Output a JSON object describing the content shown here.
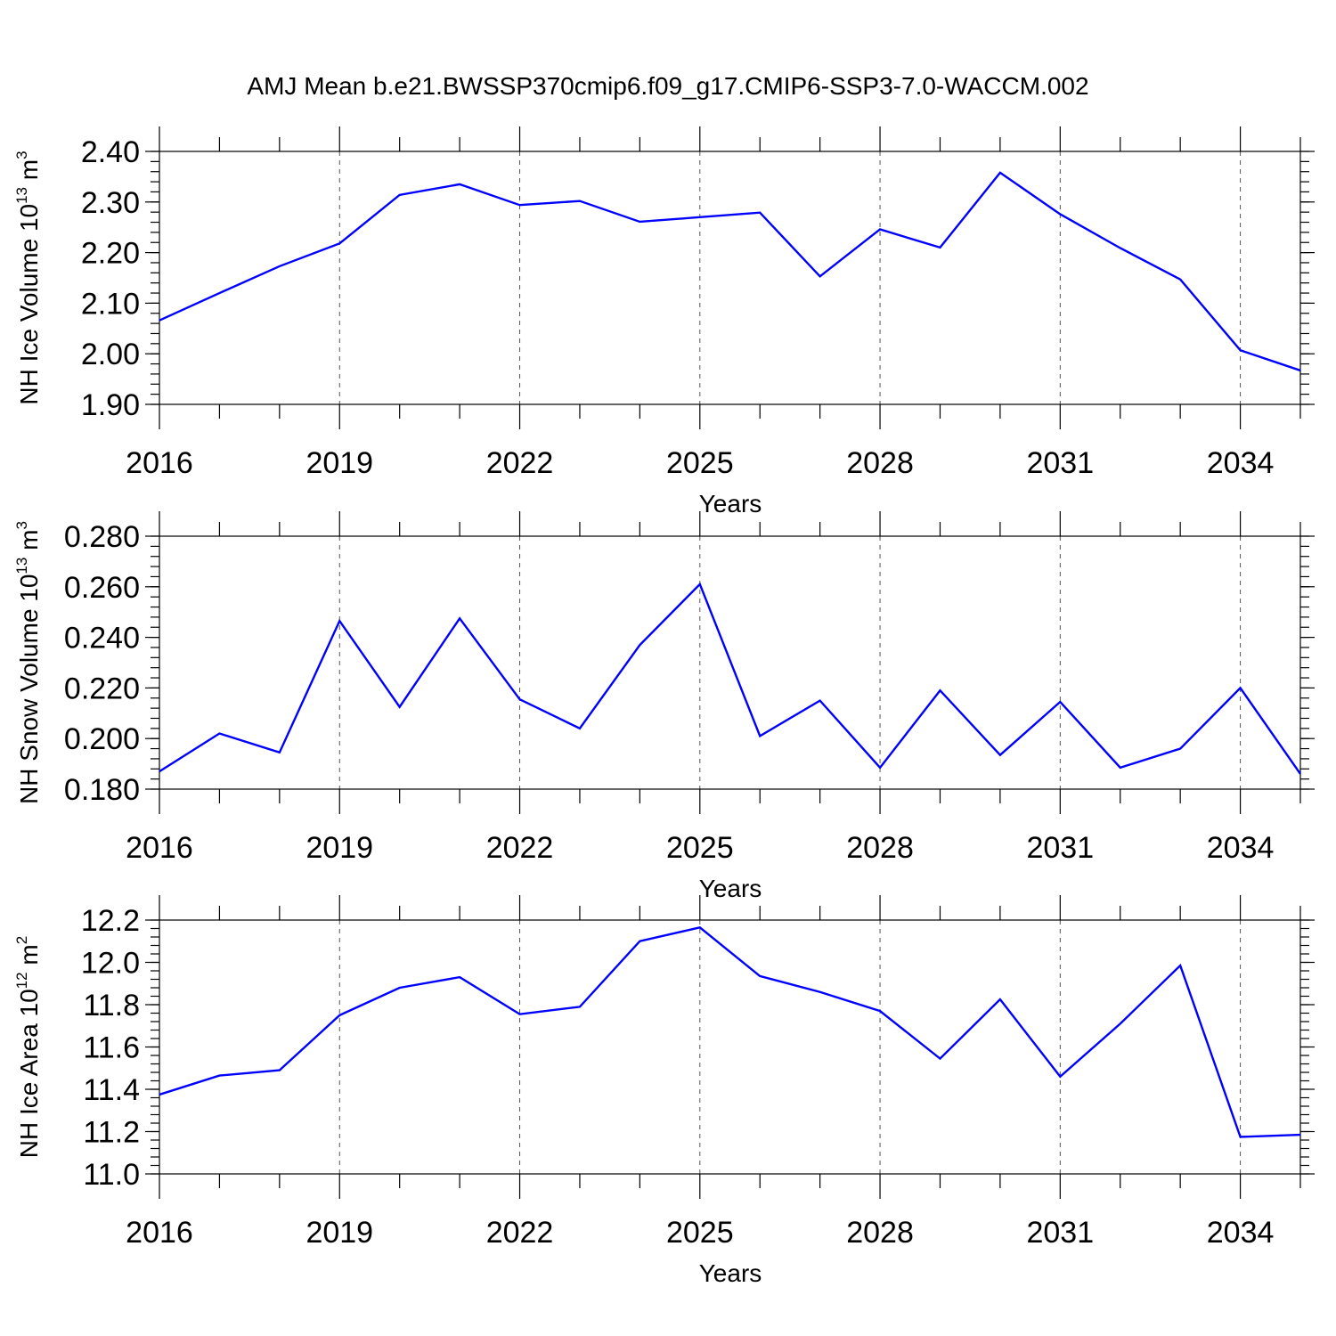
{
  "title": "AMJ Mean b.e21.BWSSP370cmip6.f09_g17.CMIP6-SSP3-7.0-WACCM.002",
  "colors": {
    "line": "#0000ff",
    "frame": "#000000",
    "grid": "#555555"
  },
  "chart_data": [
    {
      "type": "line",
      "ylabel": "NH Ice Volume 10",
      "ylabel_exp": "13",
      "ylabel_unit": " m",
      "ylabel_unit_exp": "3",
      "xlabel": "Years",
      "xlim": [
        2016,
        2035
      ],
      "ylim": [
        1.9,
        2.4
      ],
      "xticks": [
        2016,
        2019,
        2022,
        2025,
        2028,
        2031,
        2034
      ],
      "xtick_labels": [
        "2016",
        "2019",
        "2022",
        "2025",
        "2028",
        "2031",
        "2034"
      ],
      "yticks": [
        1.9,
        2.0,
        2.1,
        2.2,
        2.3,
        2.4
      ],
      "ytick_labels": [
        "1.90",
        "2.00",
        "2.10",
        "2.20",
        "2.30",
        "2.40"
      ],
      "y_minor_step": 0.02,
      "grid": "vertical dashed at labeled years",
      "x": [
        2016,
        2017,
        2018,
        2019,
        2020,
        2021,
        2022,
        2023,
        2024,
        2025,
        2026,
        2027,
        2028,
        2029,
        2030,
        2031,
        2032,
        2033,
        2034,
        2035
      ],
      "series": [
        {
          "values": [
            2.066,
            2.12,
            2.173,
            2.218,
            2.314,
            2.335,
            2.294,
            2.302,
            2.261,
            2.27,
            2.279,
            2.153,
            2.246,
            2.21,
            2.358,
            2.276,
            2.209,
            2.147,
            2.007,
            1.967
          ]
        }
      ]
    },
    {
      "type": "line",
      "ylabel": "NH Snow Volume 10",
      "ylabel_exp": "13",
      "ylabel_unit": " m",
      "ylabel_unit_exp": "3",
      "xlabel": "Years",
      "xlim": [
        2016,
        2035
      ],
      "ylim": [
        0.18,
        0.28
      ],
      "xticks": [
        2016,
        2019,
        2022,
        2025,
        2028,
        2031,
        2034
      ],
      "xtick_labels": [
        "2016",
        "2019",
        "2022",
        "2025",
        "2028",
        "2031",
        "2034"
      ],
      "yticks": [
        0.18,
        0.2,
        0.22,
        0.24,
        0.26,
        0.28
      ],
      "ytick_labels": [
        "0.180",
        "0.200",
        "0.220",
        "0.240",
        "0.260",
        "0.280"
      ],
      "y_minor_step": 0.004,
      "grid": "vertical dashed at labeled years",
      "x": [
        2016,
        2017,
        2018,
        2019,
        2020,
        2021,
        2022,
        2023,
        2024,
        2025,
        2026,
        2027,
        2028,
        2029,
        2030,
        2031,
        2032,
        2033,
        2034,
        2035
      ],
      "series": [
        {
          "values": [
            0.187,
            0.202,
            0.1945,
            0.2465,
            0.2125,
            0.2475,
            0.2155,
            0.204,
            0.237,
            0.261,
            0.201,
            0.215,
            0.1885,
            0.219,
            0.1935,
            0.2145,
            0.1885,
            0.196,
            0.22,
            0.186
          ]
        }
      ]
    },
    {
      "type": "line",
      "ylabel": "NH Ice Area 10",
      "ylabel_exp": "12",
      "ylabel_unit": " m",
      "ylabel_unit_exp": "2",
      "xlabel": "Years",
      "xlim": [
        2016,
        2035
      ],
      "ylim": [
        11.0,
        12.2
      ],
      "xticks": [
        2016,
        2019,
        2022,
        2025,
        2028,
        2031,
        2034
      ],
      "xtick_labels": [
        "2016",
        "2019",
        "2022",
        "2025",
        "2028",
        "2031",
        "2034"
      ],
      "yticks": [
        11.0,
        11.2,
        11.4,
        11.6,
        11.8,
        12.0,
        12.2
      ],
      "ytick_labels": [
        "11.0",
        "11.2",
        "11.4",
        "11.6",
        "11.8",
        "12.0",
        "12.2"
      ],
      "y_minor_step": 0.04,
      "grid": "vertical dashed at labeled years",
      "x": [
        2016,
        2017,
        2018,
        2019,
        2020,
        2021,
        2022,
        2023,
        2024,
        2025,
        2026,
        2027,
        2028,
        2029,
        2030,
        2031,
        2032,
        2033,
        2034,
        2035
      ],
      "series": [
        {
          "values": [
            11.375,
            11.465,
            11.49,
            11.75,
            11.88,
            11.93,
            11.755,
            11.79,
            12.1,
            12.165,
            11.935,
            11.86,
            11.77,
            11.545,
            11.825,
            11.46,
            11.71,
            11.985,
            11.175,
            11.185
          ]
        }
      ]
    }
  ]
}
